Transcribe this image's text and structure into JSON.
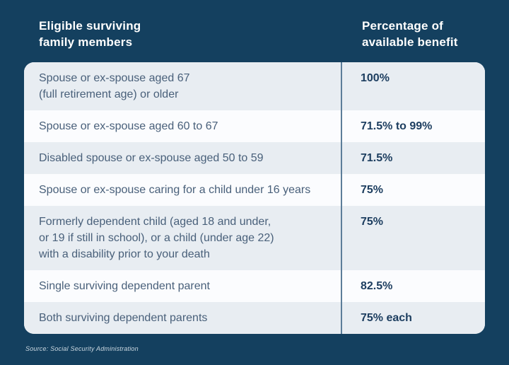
{
  "colors": {
    "background_navy": "#14405f",
    "row_light": "#e8edf2",
    "row_white": "#fbfcfe",
    "divider_blue": "#5c7d99",
    "member_text": "#49607a",
    "benefit_text": "#1c3d5f",
    "header_text": "#ffffff"
  },
  "header": {
    "members_label": "Eligible surviving\nfamily members",
    "benefit_label": "Percentage of\navailable benefit"
  },
  "table": {
    "rows": [
      {
        "member": "Spouse or ex-spouse aged 67\n(full retirement age) or older",
        "benefit": "100%"
      },
      {
        "member": "Spouse or ex-spouse aged 60 to 67",
        "benefit": "71.5% to 99%"
      },
      {
        "member": "Disabled spouse or ex-spouse aged 50 to 59",
        "benefit": "71.5%"
      },
      {
        "member": "Spouse or ex-spouse caring for a child under 16 years",
        "benefit": "75%"
      },
      {
        "member": "Formerly dependent child (aged 18 and under,\nor 19 if still in school), or a child (under age 22)\nwith a disability prior to your death",
        "benefit": "75%"
      },
      {
        "member": "Single surviving dependent parent",
        "benefit": "82.5%"
      },
      {
        "member": "Both surviving dependent parents",
        "benefit": "75% each"
      }
    ]
  },
  "footer": {
    "source": "Source: Social Security Administration"
  },
  "chart_data": {
    "type": "table",
    "title": "",
    "columns": [
      "Eligible surviving family members",
      "Percentage of available benefit"
    ],
    "rows": [
      [
        "Spouse or ex-spouse aged 67 (full retirement age) or older",
        "100%"
      ],
      [
        "Spouse or ex-spouse aged 60 to 67",
        "71.5% to 99%"
      ],
      [
        "Disabled spouse or ex-spouse aged 50 to 59",
        "71.5%"
      ],
      [
        "Spouse or ex-spouse caring for a child under 16 years",
        "75%"
      ],
      [
        "Formerly dependent child (aged 18 and under, or 19 if still in school), or a child (under age 22) with a disability prior to your death",
        "75%"
      ],
      [
        "Single surviving dependent parent",
        "82.5%"
      ],
      [
        "Both surviving dependent parents",
        "75% each"
      ]
    ],
    "source": "Source: Social Security Administration",
    "layout_hints": {
      "alternating_rows": true,
      "first_row_shaded": true,
      "column_divider": true
    }
  }
}
